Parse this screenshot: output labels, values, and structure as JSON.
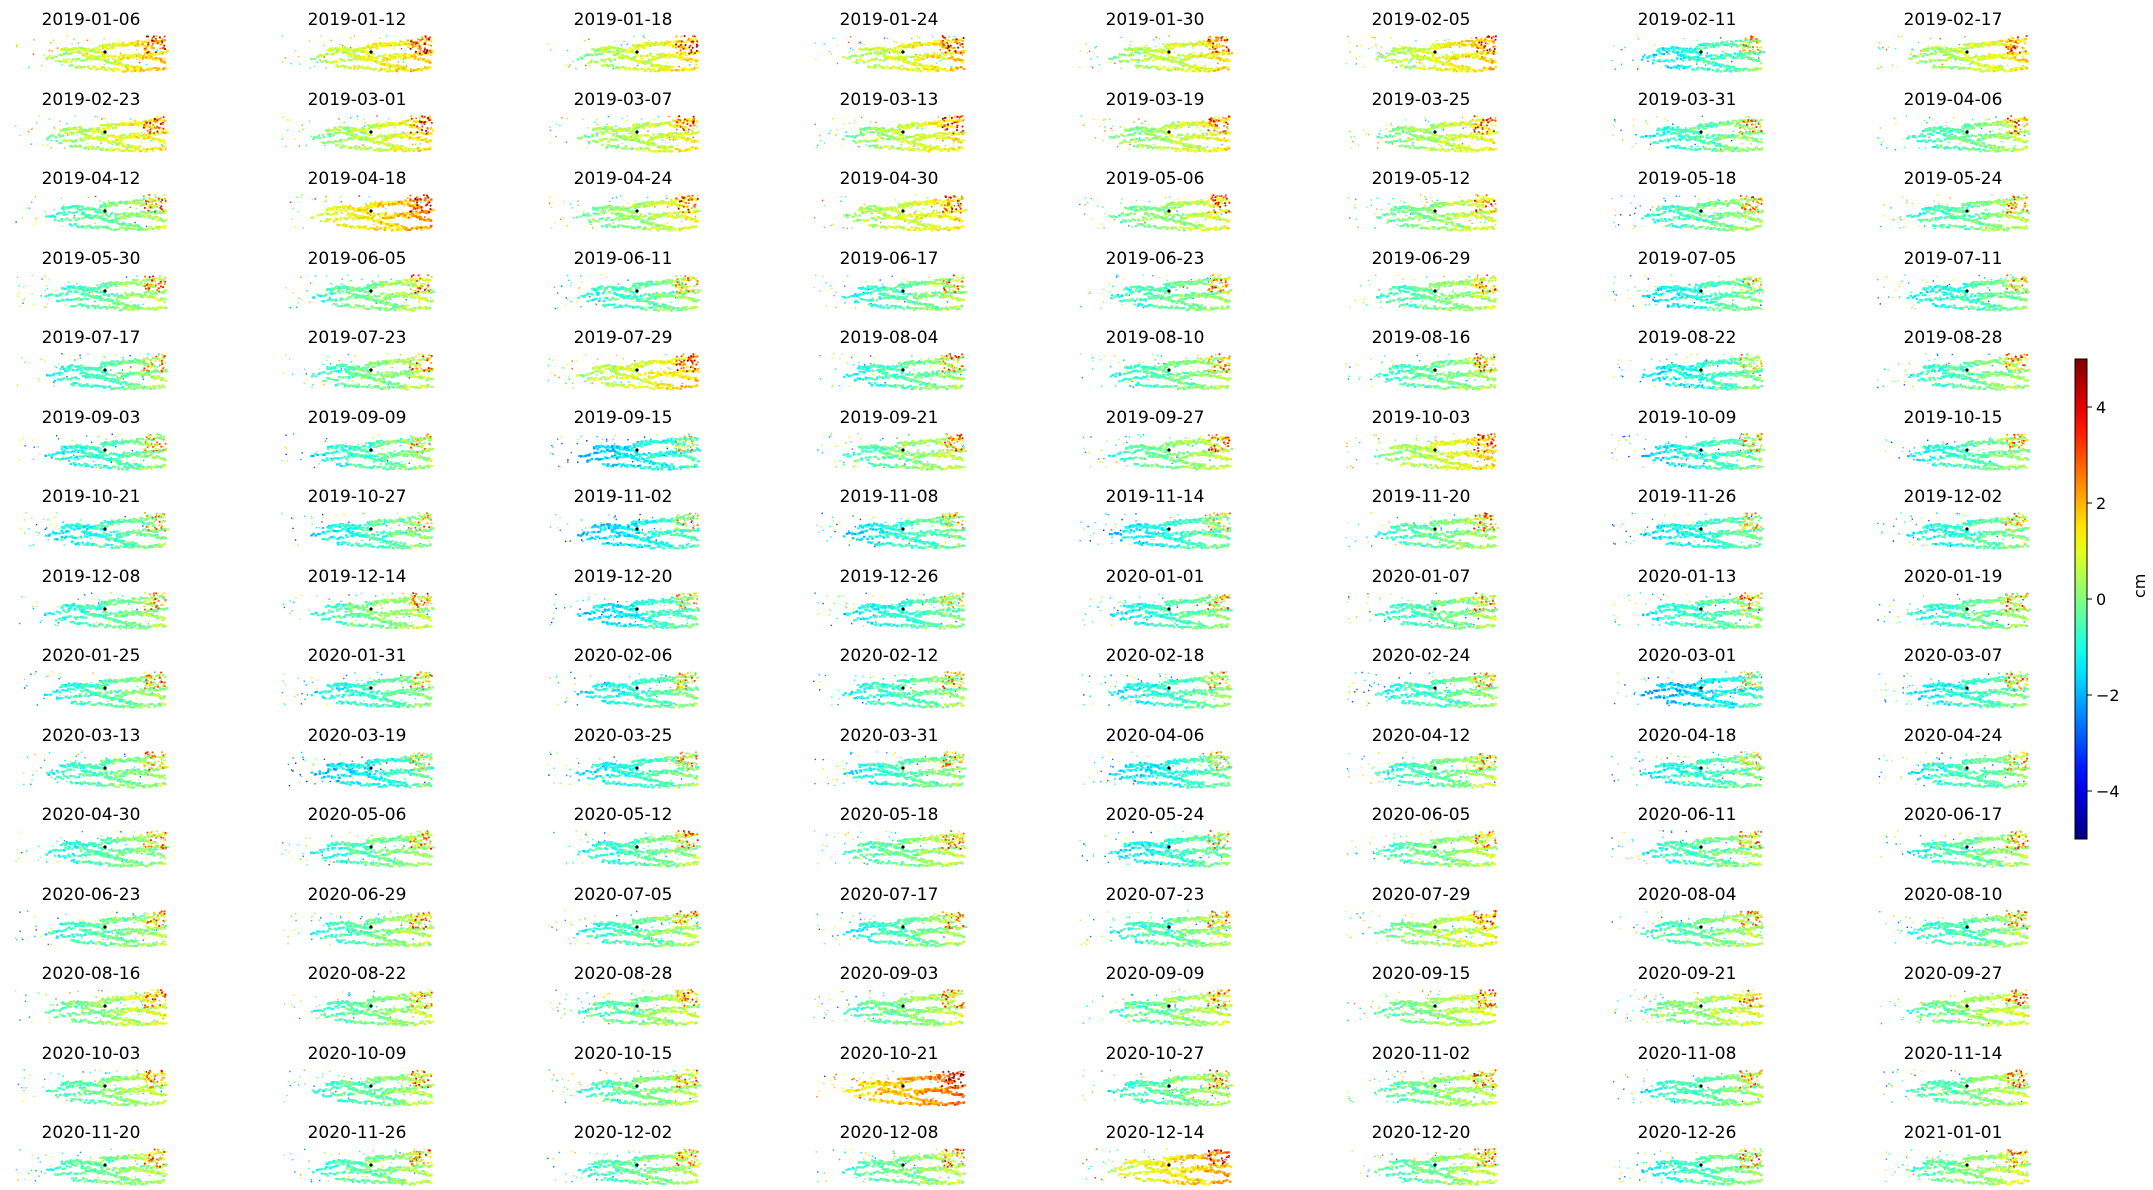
{
  "figure": {
    "dates": [
      "2019-01-06",
      "2019-01-12",
      "2019-01-18",
      "2019-01-24",
      "2019-01-30",
      "2019-02-05",
      "2019-02-11",
      "2019-02-17",
      "2019-02-23",
      "2019-03-01",
      "2019-03-07",
      "2019-03-13",
      "2019-03-19",
      "2019-03-25",
      "2019-03-31",
      "2019-04-06",
      "2019-04-12",
      "2019-04-18",
      "2019-04-24",
      "2019-04-30",
      "2019-05-06",
      "2019-05-12",
      "2019-05-18",
      "2019-05-24",
      "2019-05-30",
      "2019-06-05",
      "2019-06-11",
      "2019-06-17",
      "2019-06-23",
      "2019-06-29",
      "2019-07-05",
      "2019-07-11",
      "2019-07-17",
      "2019-07-23",
      "2019-07-29",
      "2019-08-04",
      "2019-08-10",
      "2019-08-16",
      "2019-08-22",
      "2019-08-28",
      "2019-09-03",
      "2019-09-09",
      "2019-09-15",
      "2019-09-21",
      "2019-09-27",
      "2019-10-03",
      "2019-10-09",
      "2019-10-15",
      "2019-10-21",
      "2019-10-27",
      "2019-11-02",
      "2019-11-08",
      "2019-11-14",
      "2019-11-20",
      "2019-11-26",
      "2019-12-02",
      "2019-12-08",
      "2019-12-14",
      "2019-12-20",
      "2019-12-26",
      "2020-01-01",
      "2020-01-07",
      "2020-01-13",
      "2020-01-19",
      "2020-01-25",
      "2020-01-31",
      "2020-02-06",
      "2020-02-12",
      "2020-02-18",
      "2020-02-24",
      "2020-03-01",
      "2020-03-07",
      "2020-03-13",
      "2020-03-19",
      "2020-03-25",
      "2020-03-31",
      "2020-04-06",
      "2020-04-12",
      "2020-04-18",
      "2020-04-24",
      "2020-04-30",
      "2020-05-06",
      "2020-05-12",
      "2020-05-18",
      "2020-05-24",
      "2020-06-05",
      "2020-06-11",
      "2020-06-17",
      "2020-06-23",
      "2020-06-29",
      "2020-07-05",
      "2020-07-17",
      "2020-07-23",
      "2020-07-29",
      "2020-08-04",
      "2020-08-10",
      "2020-08-16",
      "2020-08-22",
      "2020-08-28",
      "2020-09-03",
      "2020-09-09",
      "2020-09-15",
      "2020-09-21",
      "2020-09-27",
      "2020-10-03",
      "2020-10-09",
      "2020-10-15",
      "2020-10-21",
      "2020-10-27",
      "2020-11-02",
      "2020-11-08",
      "2020-11-14",
      "2020-11-20",
      "2020-11-26",
      "2020-12-02",
      "2020-12-08",
      "2020-12-14",
      "2020-12-20",
      "2020-12-26",
      "2021-01-01"
    ]
  },
  "chart_data": {
    "type": "heatmap",
    "title": "",
    "panel_titles_source": "figure.dates",
    "panel_mean_displacement_cm": [
      0.8,
      0.9,
      0.6,
      0.8,
      0.6,
      0.8,
      -1.0,
      0.5,
      0.6,
      0.5,
      0.4,
      0.5,
      0.4,
      0.3,
      -0.6,
      -0.3,
      -0.4,
      1.3,
      0.2,
      0.6,
      0.1,
      0.0,
      -0.5,
      -0.4,
      -0.4,
      -0.2,
      -0.6,
      -0.5,
      -0.5,
      -0.3,
      -1.0,
      -0.8,
      -0.6,
      -0.3,
      0.8,
      -0.6,
      -0.4,
      -0.4,
      -1.0,
      -0.5,
      -0.8,
      -0.7,
      -1.5,
      -0.2,
      -0.2,
      0.6,
      -1.0,
      -0.7,
      -0.9,
      -0.8,
      -1.4,
      -1.0,
      -1.1,
      -0.4,
      -1.1,
      -0.8,
      -0.6,
      -0.3,
      -1.2,
      -0.9,
      -0.8,
      -0.5,
      -0.7,
      -0.6,
      -0.6,
      -0.8,
      -0.9,
      -0.7,
      -0.9,
      -0.7,
      -1.6,
      -1.0,
      -0.5,
      -1.3,
      -0.9,
      -0.7,
      -1.2,
      -0.5,
      -0.9,
      -0.7,
      -0.6,
      -0.5,
      -0.6,
      -0.2,
      -1.0,
      -0.2,
      -0.6,
      -0.5,
      -0.5,
      -0.4,
      -0.5,
      -0.6,
      -0.5,
      0.2,
      -0.4,
      -0.6,
      0.1,
      -0.3,
      -0.2,
      -0.2,
      -0.2,
      0.0,
      0.1,
      0.0,
      -0.2,
      -0.4,
      -0.3,
      1.8,
      -0.4,
      -0.1,
      -0.6,
      -0.3,
      -0.3,
      -0.4,
      -0.4,
      -0.3,
      1.2,
      -0.2,
      -0.7,
      -0.1
    ],
    "colorbar": {
      "colormap": "jet",
      "range": [
        -5,
        5
      ],
      "ticks": [
        -4,
        -2,
        0,
        2,
        4
      ],
      "tick_labels": [
        "−4",
        "−2",
        "0",
        "2",
        "4"
      ],
      "label": "cm"
    },
    "marker": {
      "color": "#000000"
    },
    "axes_visible": false
  }
}
